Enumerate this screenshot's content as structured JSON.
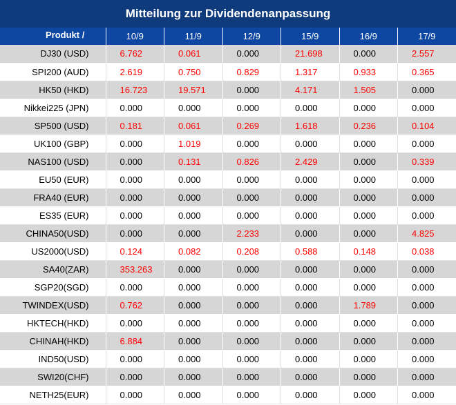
{
  "title": "Mitteilung zur Dividendenanpassung",
  "header": {
    "product_label": "Produkt /",
    "dates": [
      "10/9",
      "11/9",
      "12/9",
      "15/9",
      "16/9",
      "17/9"
    ]
  },
  "colors": {
    "title_bg": "#0f3a7c",
    "header_bg": "#0d47a1",
    "stripe": "#d6d6d6",
    "highlight": "#ff0000"
  },
  "rows": [
    {
      "product": "DJ30 (USD)",
      "values": [
        "6.762",
        "0.061",
        "0.000",
        "21.698",
        "0.000",
        "2.557"
      ]
    },
    {
      "product": "SPI200 (AUD)",
      "values": [
        "2.619",
        "0.750",
        "0.829",
        "1.317",
        "0.933",
        "0.365"
      ]
    },
    {
      "product": "HK50 (HKD)",
      "values": [
        "16.723",
        "19.571",
        "0.000",
        "4.171",
        "1.505",
        "0.000"
      ]
    },
    {
      "product": "Nikkei225 (JPN)",
      "values": [
        "0.000",
        "0.000",
        "0.000",
        "0.000",
        "0.000",
        "0.000"
      ]
    },
    {
      "product": "SP500 (USD)",
      "values": [
        "0.181",
        "0.061",
        "0.269",
        "1.618",
        "0.236",
        "0.104"
      ]
    },
    {
      "product": "UK100 (GBP)",
      "values": [
        "0.000",
        "1.019",
        "0.000",
        "0.000",
        "0.000",
        "0.000"
      ]
    },
    {
      "product": "NAS100 (USD)",
      "values": [
        "0.000",
        "0.131",
        "0.826",
        "2.429",
        "0.000",
        "0.339"
      ]
    },
    {
      "product": "EU50 (EUR)",
      "values": [
        "0.000",
        "0.000",
        "0.000",
        "0.000",
        "0.000",
        "0.000"
      ]
    },
    {
      "product": "FRA40 (EUR)",
      "values": [
        "0.000",
        "0.000",
        "0.000",
        "0.000",
        "0.000",
        "0.000"
      ]
    },
    {
      "product": "ES35 (EUR)",
      "values": [
        "0.000",
        "0.000",
        "0.000",
        "0.000",
        "0.000",
        "0.000"
      ]
    },
    {
      "product": "CHINA50(USD)",
      "values": [
        "0.000",
        "0.000",
        "2.233",
        "0.000",
        "0.000",
        "4.825"
      ]
    },
    {
      "product": "US2000(USD)",
      "values": [
        "0.124",
        "0.082",
        "0.208",
        "0.588",
        "0.148",
        "0.038"
      ]
    },
    {
      "product": "SA40(ZAR)",
      "values": [
        "353.263",
        "0.000",
        "0.000",
        "0.000",
        "0.000",
        "0.000"
      ]
    },
    {
      "product": "SGP20(SGD)",
      "values": [
        "0.000",
        "0.000",
        "0.000",
        "0.000",
        "0.000",
        "0.000"
      ]
    },
    {
      "product": "TWINDEX(USD)",
      "values": [
        "0.762",
        "0.000",
        "0.000",
        "0.000",
        "1.789",
        "0.000"
      ]
    },
    {
      "product": "HKTECH(HKD)",
      "values": [
        "0.000",
        "0.000",
        "0.000",
        "0.000",
        "0.000",
        "0.000"
      ]
    },
    {
      "product": "CHINAH(HKD)",
      "values": [
        "6.884",
        "0.000",
        "0.000",
        "0.000",
        "0.000",
        "0.000"
      ]
    },
    {
      "product": "IND50(USD)",
      "values": [
        "0.000",
        "0.000",
        "0.000",
        "0.000",
        "0.000",
        "0.000"
      ]
    },
    {
      "product": "SWI20(CHF)",
      "values": [
        "0.000",
        "0.000",
        "0.000",
        "0.000",
        "0.000",
        "0.000"
      ]
    },
    {
      "product": "NETH25(EUR)",
      "values": [
        "0.000",
        "0.000",
        "0.000",
        "0.000",
        "0.000",
        "0.000"
      ]
    }
  ]
}
